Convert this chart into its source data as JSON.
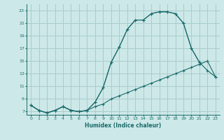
{
  "xlabel": "Humidex (Indice chaleur)",
  "bg_color": "#cde8e8",
  "grid_color": "#a8cccc",
  "line_color": "#1a6b6b",
  "xlim": [
    -0.5,
    23.5
  ],
  "ylim": [
    6.5,
    24.0
  ],
  "xticks": [
    0,
    1,
    2,
    3,
    4,
    5,
    6,
    7,
    8,
    9,
    10,
    11,
    12,
    13,
    14,
    15,
    16,
    17,
    18,
    19,
    20,
    21,
    22,
    23
  ],
  "yticks": [
    7,
    9,
    11,
    13,
    15,
    17,
    19,
    21,
    23
  ],
  "curve1_x": [
    0,
    1,
    2,
    3,
    4,
    5,
    6,
    7,
    8,
    9,
    10,
    11,
    12,
    13,
    14,
    15,
    16,
    17,
    18,
    19,
    20,
    21,
    22,
    23
  ],
  "curve1_y": [
    8.0,
    7.2,
    6.8,
    7.2,
    7.8,
    7.2,
    7.0,
    7.2,
    7.8,
    8.2,
    9.0,
    9.5,
    10.0,
    10.5,
    11.0,
    11.5,
    12.0,
    12.5,
    13.0,
    13.5,
    14.0,
    14.5,
    15.0,
    12.5
  ],
  "curve2_x": [
    0,
    1,
    2,
    3,
    4,
    5,
    6,
    7,
    8,
    9,
    10,
    11,
    12,
    13,
    14,
    15,
    16,
    17,
    18,
    19,
    20,
    21
  ],
  "curve2_y": [
    8.0,
    7.2,
    6.8,
    7.2,
    7.8,
    7.2,
    7.0,
    7.2,
    8.5,
    10.8,
    14.8,
    17.2,
    20.0,
    21.5,
    21.5,
    22.5,
    22.8,
    22.8,
    22.5,
    21.0,
    17.0,
    14.8
  ],
  "curve3_x": [
    0,
    1,
    2,
    3,
    4,
    5,
    6,
    7,
    8,
    9,
    10,
    11,
    12,
    13,
    14,
    15,
    16,
    17,
    18,
    19,
    20,
    21,
    22,
    23
  ],
  "curve3_y": [
    8.0,
    7.2,
    6.8,
    7.2,
    7.8,
    7.2,
    7.0,
    7.2,
    8.5,
    10.8,
    14.8,
    17.2,
    20.0,
    21.5,
    21.5,
    22.5,
    22.8,
    22.8,
    22.5,
    21.0,
    17.0,
    14.8,
    13.5,
    12.5
  ]
}
